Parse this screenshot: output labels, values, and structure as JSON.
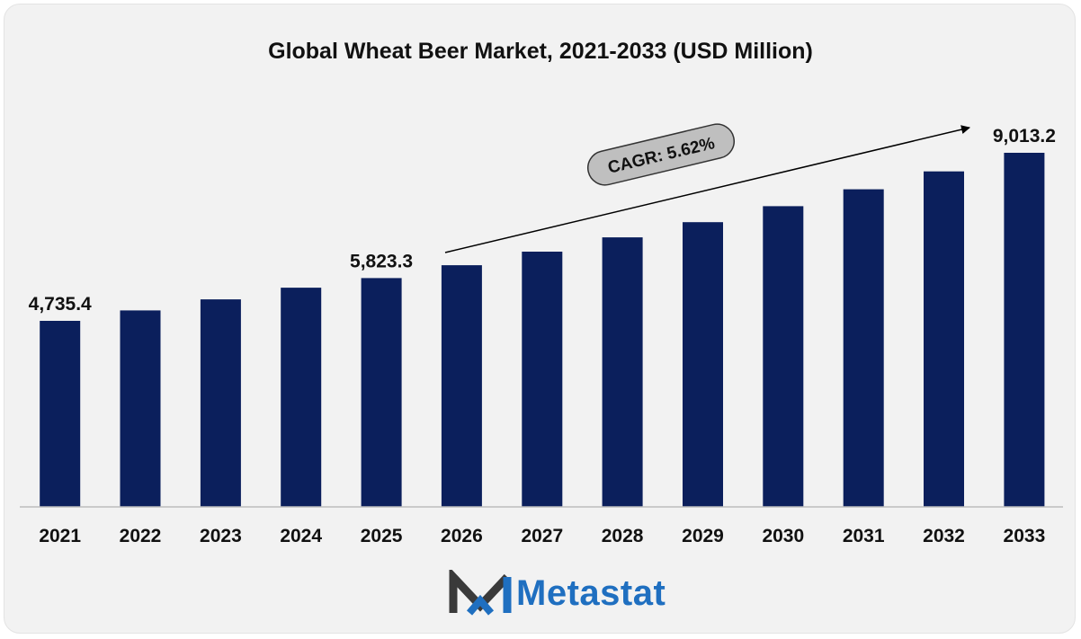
{
  "chart_data": {
    "type": "bar",
    "title": "Global Wheat Beer Market, 2021-2033 (USD Million)",
    "categories": [
      "2021",
      "2022",
      "2023",
      "2024",
      "2025",
      "2026",
      "2027",
      "2028",
      "2029",
      "2030",
      "2031",
      "2032",
      "2033"
    ],
    "values": [
      4735.4,
      5001.5,
      5282.6,
      5579.4,
      5823.3,
      6150.6,
      6496.2,
      6861.3,
      7246.9,
      7654.2,
      8084.3,
      8538.6,
      9013.2
    ],
    "data_labels": {
      "0": "4,735.4",
      "4": "5,823.3",
      "12": "9,013.2"
    },
    "annotation": "CAGR: 5.62%",
    "ylim": [
      0,
      9013.2
    ],
    "bar_color": "#0b1f5c",
    "grid": false,
    "legend": false
  },
  "brand": {
    "name": "Metastat",
    "colors": {
      "dark": "#3a3a3a",
      "blue": "#1f6fc0"
    }
  }
}
